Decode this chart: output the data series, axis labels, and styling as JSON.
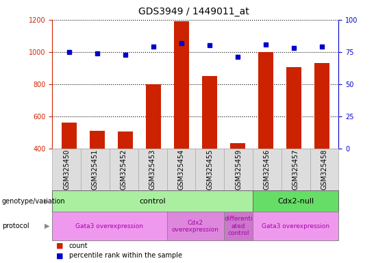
{
  "title": "GDS3949 / 1449011_at",
  "samples": [
    "GSM325450",
    "GSM325451",
    "GSM325452",
    "GSM325453",
    "GSM325454",
    "GSM325455",
    "GSM325459",
    "GSM325456",
    "GSM325457",
    "GSM325458"
  ],
  "counts": [
    560,
    510,
    505,
    800,
    1190,
    850,
    435,
    1000,
    905,
    930
  ],
  "percentiles": [
    75,
    74,
    73,
    79,
    82,
    80,
    71,
    81,
    78,
    79
  ],
  "ylim_left": [
    400,
    1200
  ],
  "ylim_right": [
    0,
    100
  ],
  "yticks_left": [
    400,
    600,
    800,
    1000,
    1200
  ],
  "yticks_right": [
    0,
    25,
    50,
    75,
    100
  ],
  "bar_color": "#cc2200",
  "dot_color": "#0000cc",
  "title_fontsize": 10,
  "tick_fontsize": 7,
  "label_fontsize": 7,
  "row_fontsize": 8,
  "control_color": "#aaeea0",
  "cdx2null_color": "#66dd66",
  "gata3_color": "#ee99ee",
  "cdx2_color": "#dd88dd",
  "diff_color": "#cc77cc",
  "tick_bg_color": "#dddddd",
  "genotype_segments": [
    {
      "start": 0,
      "end": 6,
      "label": "control",
      "color": "#aaeea0"
    },
    {
      "start": 7,
      "end": 9,
      "label": "Cdx2-null",
      "color": "#66dd66"
    }
  ],
  "protocol_segments": [
    {
      "start": 0,
      "end": 3,
      "label": "Gata3 overexpression",
      "color": "#ee99ee"
    },
    {
      "start": 4,
      "end": 5,
      "label": "Cdx2\noverexpression",
      "color": "#dd88dd"
    },
    {
      "start": 6,
      "end": 6,
      "label": "differenti\nated\ncontrol",
      "color": "#cc77cc"
    },
    {
      "start": 7,
      "end": 9,
      "label": "Gata3 overexpression",
      "color": "#ee99ee"
    }
  ]
}
